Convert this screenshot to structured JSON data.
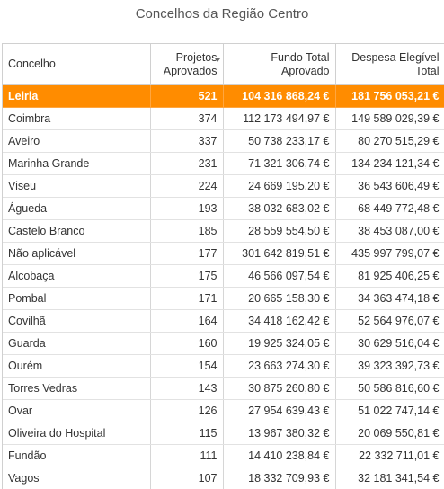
{
  "title": "Concelhos da Região Centro",
  "colors": {
    "highlight": "#ff8c00"
  },
  "columns": {
    "concelho": "Concelho",
    "projetos": "Projetos Aprovados",
    "fundo": "Fundo Total Aprovado",
    "despesa": "Despesa Elegível Total"
  },
  "rows": [
    {
      "concelho": "Leiria",
      "projetos": "521",
      "fundo": "104 316 868,24 €",
      "despesa": "181 756 053,21 €"
    },
    {
      "concelho": "Coimbra",
      "projetos": "374",
      "fundo": "112 173 494,97 €",
      "despesa": "149 589 029,39 €"
    },
    {
      "concelho": "Aveiro",
      "projetos": "337",
      "fundo": "50 738 233,17 €",
      "despesa": "80 270 515,29 €"
    },
    {
      "concelho": "Marinha Grande",
      "projetos": "231",
      "fundo": "71 321 306,74 €",
      "despesa": "134 234 121,34 €"
    },
    {
      "concelho": "Viseu",
      "projetos": "224",
      "fundo": "24 669 195,20 €",
      "despesa": "36 543 606,49 €"
    },
    {
      "concelho": "Águeda",
      "projetos": "193",
      "fundo": "38 032 683,02 €",
      "despesa": "68 449 772,48 €"
    },
    {
      "concelho": "Castelo Branco",
      "projetos": "185",
      "fundo": "28 559 554,50 €",
      "despesa": "38 453 087,00 €"
    },
    {
      "concelho": "Não aplicável",
      "projetos": "177",
      "fundo": "301 642 819,51 €",
      "despesa": "435 997 799,07 €"
    },
    {
      "concelho": "Alcobaça",
      "projetos": "175",
      "fundo": "46 566 097,54 €",
      "despesa": "81 925 406,25 €"
    },
    {
      "concelho": "Pombal",
      "projetos": "171",
      "fundo": "20 665 158,30 €",
      "despesa": "34 363 474,18 €"
    },
    {
      "concelho": "Covilhã",
      "projetos": "164",
      "fundo": "34 418 162,42 €",
      "despesa": "52 564 976,07 €"
    },
    {
      "concelho": "Guarda",
      "projetos": "160",
      "fundo": "19 925 324,05 €",
      "despesa": "30 629 516,04 €"
    },
    {
      "concelho": "Ourém",
      "projetos": "154",
      "fundo": "23 663 274,30 €",
      "despesa": "39 323 392,73 €"
    },
    {
      "concelho": "Torres Vedras",
      "projetos": "143",
      "fundo": "30 875 260,80 €",
      "despesa": "50 586 816,60 €"
    },
    {
      "concelho": "Ovar",
      "projetos": "126",
      "fundo": "27 954 639,43 €",
      "despesa": "51 022 747,14 €"
    },
    {
      "concelho": "Oliveira do Hospital",
      "projetos": "115",
      "fundo": "13 967 380,32 €",
      "despesa": "20 069 550,81 €"
    },
    {
      "concelho": "Fundão",
      "projetos": "111",
      "fundo": "14 410 238,84 €",
      "despesa": "22 332 711,01 €"
    },
    {
      "concelho": "Vagos",
      "projetos": "107",
      "fundo": "18 332 709,93 €",
      "despesa": "32 181 341,54 €"
    }
  ]
}
